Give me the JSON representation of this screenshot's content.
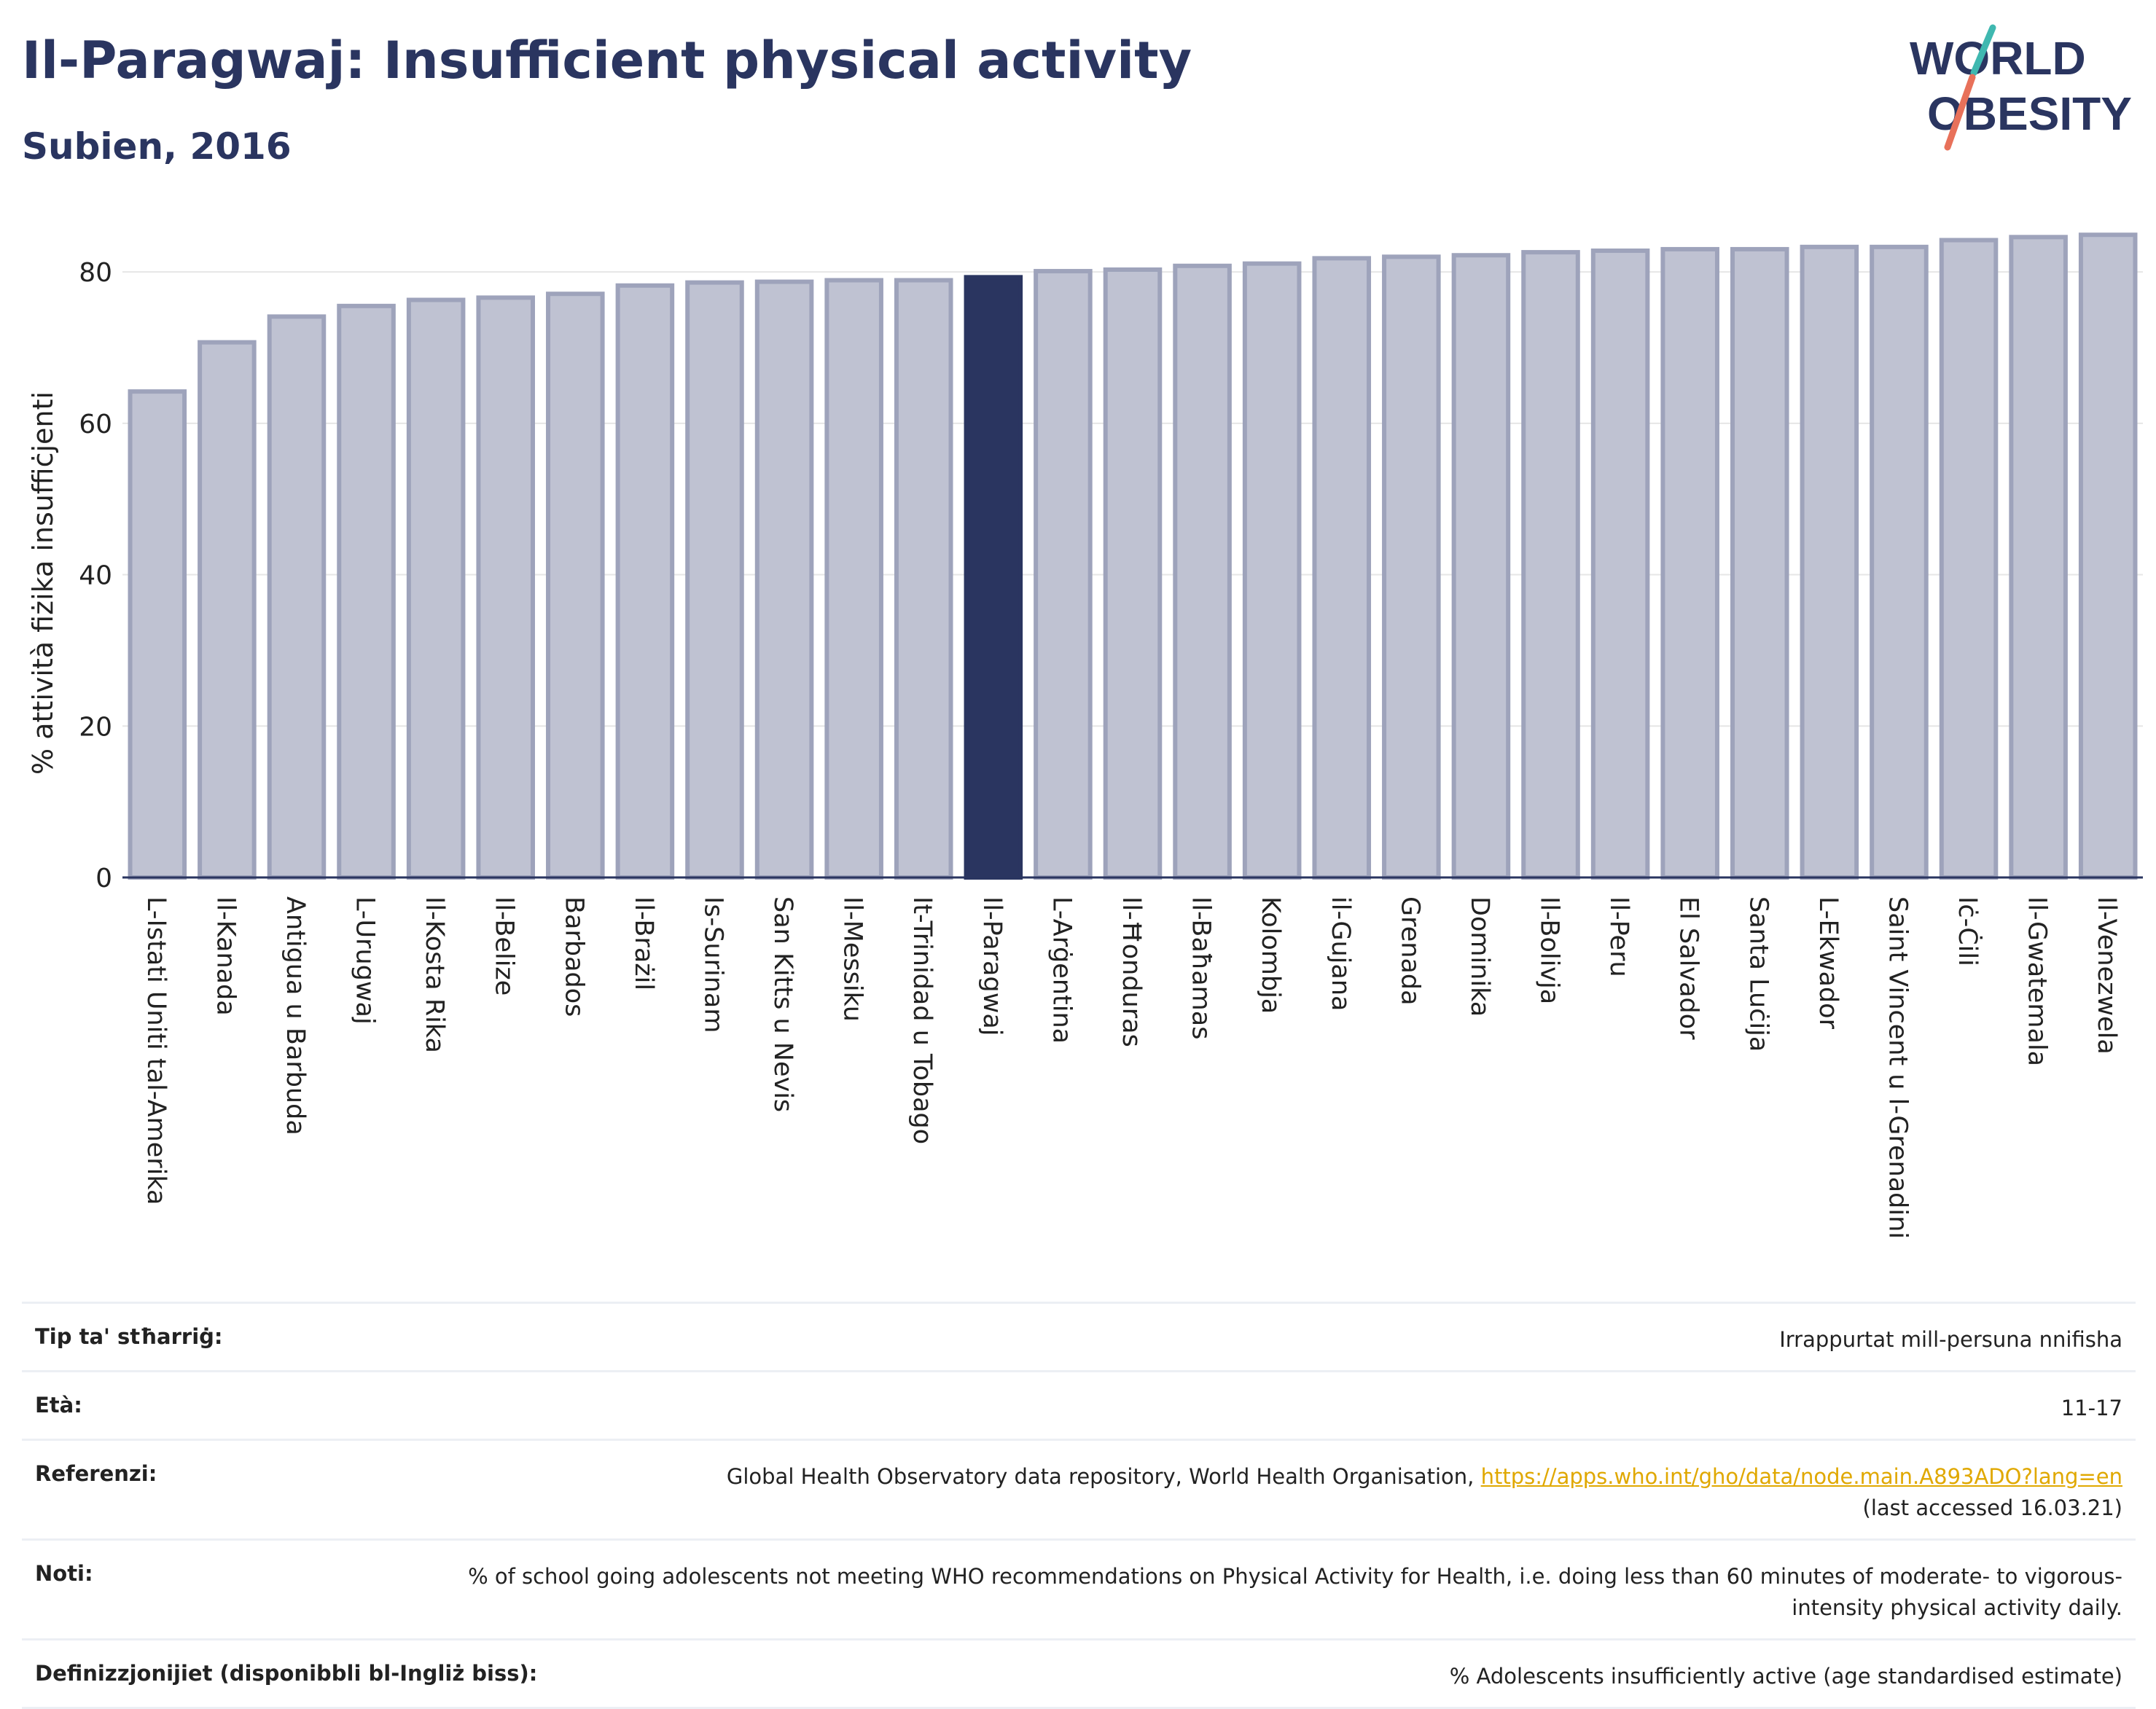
{
  "header": {
    "title": "Il-Paragwaj: Insufficient physical activity",
    "subtitle": "Subien, 2016"
  },
  "logo": {
    "line1": "WORLD",
    "line2": "OBESITY",
    "colors": [
      "#2a3560",
      "#3fb8b0",
      "#e8715a"
    ]
  },
  "colors": {
    "bar": "#bfc2d2",
    "bar_border": "#9ea3bb",
    "highlight": "#2a3560",
    "grid": "#e6e6e6",
    "axis": "#2a3560"
  },
  "chart_data": {
    "type": "bar",
    "ylabel": "% attività fiżika insuffiċjenti",
    "ylim": [
      0,
      88
    ],
    "yticks": [
      0,
      20,
      40,
      60,
      80
    ],
    "grid": true,
    "highlight": "Il-Paragwaj",
    "categories": [
      "L-Istati Uniti tal-Amerika",
      "Il-Kanada",
      "Antigua u Barbuda",
      "L-Urugwaj",
      "Il-Kosta Rika",
      "Il-Belize",
      "Barbados",
      "Il-Brażil",
      "Is-Surinam",
      "San Kitts u Nevis",
      "Il-Messiku",
      "It-Trinidad u Tobago",
      "Il-Paragwaj",
      "L-Arġentina",
      "Il-Ħonduras",
      "Il-Baħamas",
      "Kolombja",
      "il-Gujana",
      "Grenada",
      "Dominika",
      "Il-Bolivja",
      "Il-Peru",
      "El Salvador",
      "Santa Luċija",
      "L-Ekwador",
      "Saint Vincent u l-Grenadini",
      "Iċ-Ċili",
      "Il-Gwatemala",
      "Il-Venezwela"
    ],
    "values": [
      64.2,
      70.7,
      74.1,
      75.5,
      76.3,
      76.6,
      77.1,
      78.2,
      78.6,
      78.7,
      78.9,
      78.9,
      79.3,
      80.1,
      80.3,
      80.8,
      81.1,
      81.8,
      82.0,
      82.2,
      82.6,
      82.8,
      83.0,
      83.0,
      83.3,
      83.3,
      84.2,
      84.6,
      84.9
    ]
  },
  "meta": {
    "rows": [
      {
        "label": "Tip ta' stħarriġ:",
        "value": "Irrappurtat mill-persuna nnifisha"
      },
      {
        "label": "Età:",
        "value": "11-17"
      },
      {
        "label": "Referenzi:",
        "value": "Global Health Observatory data repository, World Health Organisation, ",
        "link": "https://apps.who.int/gho/data/node.main.A893ADO?lang=en",
        "extra": "(last accessed 16.03.21)"
      },
      {
        "label": "Noti:",
        "value": "% of school going adolescents not meeting WHO recommendations on Physical Activity for Health, i.e. doing less than 60 minutes of moderate- to vigorous-intensity physical activity daily."
      },
      {
        "label": "Definizzjonijiet (disponibbli bl-Ingliż biss):",
        "value": "% Adolescents insufficiently active (age standardised estimate)"
      }
    ]
  }
}
